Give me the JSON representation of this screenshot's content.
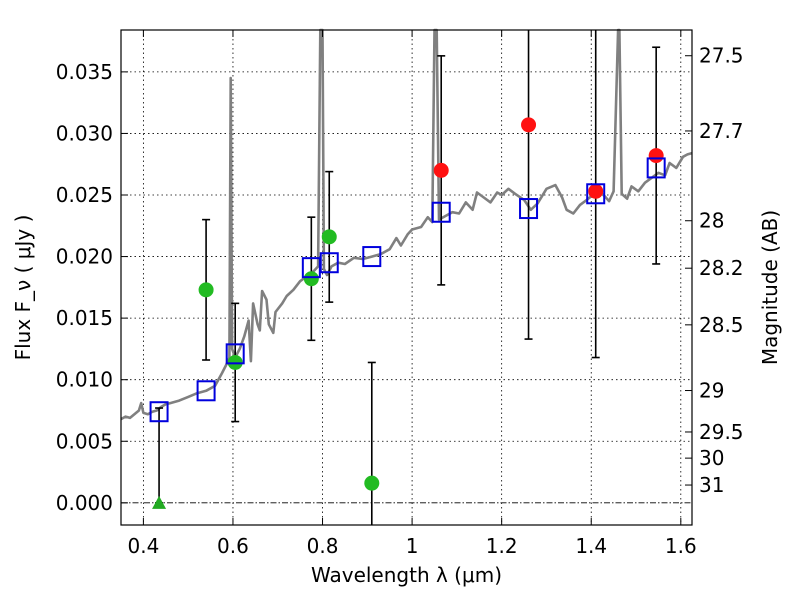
{
  "chart_data": {
    "type": "scatter",
    "xlabel": "Wavelength  λ (μm)",
    "ylabel_left": "Flux  F_ν  ( μJy )",
    "ylabel_right": "Magnitude (AB)",
    "xlim": [
      0.35,
      1.625
    ],
    "ylim": [
      -0.0018,
      0.0384
    ],
    "x_ticks": [
      0.4,
      0.6,
      0.8,
      1.0,
      1.2,
      1.4,
      1.6
    ],
    "x_tick_labels": [
      "0.4",
      "0.6",
      "0.8",
      "1",
      "1.2",
      "1.4",
      "1.6"
    ],
    "y_ticks": [
      0.0,
      0.005,
      0.01,
      0.015,
      0.02,
      0.025,
      0.03,
      0.035
    ],
    "y_tick_labels": [
      "0.000",
      "0.005",
      "0.010",
      "0.015",
      "0.020",
      "0.025",
      "0.030",
      "0.035"
    ],
    "mag_ticks": [
      {
        "label": "27.5",
        "mag": 27.5
      },
      {
        "label": "27.7",
        "mag": 27.7
      },
      {
        "label": "28",
        "mag": 28.0
      },
      {
        "label": "28.2",
        "mag": 28.2
      },
      {
        "label": "28.5",
        "mag": 28.5
      },
      {
        "label": "29",
        "mag": 29.0
      },
      {
        "label": "29.5",
        "mag": 29.5
      },
      {
        "label": "30",
        "mag": 30.0
      },
      {
        "label": "31",
        "mag": 31.0
      }
    ],
    "grid": true,
    "dashed_zero_line": true,
    "observed_green": [
      {
        "x": 0.54,
        "y": 0.0173,
        "err": 0.0057
      },
      {
        "x": 0.605,
        "y": 0.0114,
        "err": 0.0048
      },
      {
        "x": 0.775,
        "y": 0.0182,
        "err": 0.005
      },
      {
        "x": 0.815,
        "y": 0.0216,
        "err": 0.0053
      },
      {
        "x": 0.91,
        "y": 0.0016,
        "err": 0.0098
      }
    ],
    "observed_red": [
      {
        "x": 1.065,
        "y": 0.027,
        "err": 0.0093
      },
      {
        "x": 1.26,
        "y": 0.0307,
        "err": 0.0174
      },
      {
        "x": 1.41,
        "y": 0.0253,
        "err": 0.0135
      },
      {
        "x": 1.545,
        "y": 0.0282,
        "err": 0.0088
      }
    ],
    "upper_limit": {
      "x": 0.435,
      "y": 0.0,
      "err_top": 0.0077,
      "color": "#22aa22"
    },
    "model_points": [
      {
        "x": 0.435,
        "y": 0.0074
      },
      {
        "x": 0.54,
        "y": 0.0091
      },
      {
        "x": 0.605,
        "y": 0.0121
      },
      {
        "x": 0.775,
        "y": 0.0191
      },
      {
        "x": 0.815,
        "y": 0.0195
      },
      {
        "x": 0.91,
        "y": 0.02
      },
      {
        "x": 1.065,
        "y": 0.0236
      },
      {
        "x": 1.26,
        "y": 0.0239
      },
      {
        "x": 1.41,
        "y": 0.0251
      },
      {
        "x": 1.545,
        "y": 0.0272
      }
    ],
    "model_spectrum": [
      [
        0.35,
        0.0068
      ],
      [
        0.36,
        0.007
      ],
      [
        0.37,
        0.0069
      ],
      [
        0.38,
        0.0072
      ],
      [
        0.39,
        0.0075
      ],
      [
        0.395,
        0.0081
      ],
      [
        0.4,
        0.0073
      ],
      [
        0.41,
        0.0072
      ],
      [
        0.42,
        0.0074
      ],
      [
        0.43,
        0.0075
      ],
      [
        0.44,
        0.0078
      ],
      [
        0.45,
        0.008
      ],
      [
        0.46,
        0.0081
      ],
      [
        0.48,
        0.0083
      ],
      [
        0.5,
        0.0086
      ],
      [
        0.52,
        0.0089
      ],
      [
        0.54,
        0.0091
      ],
      [
        0.56,
        0.0095
      ],
      [
        0.575,
        0.0105
      ],
      [
        0.585,
        0.0112
      ],
      [
        0.592,
        0.0118
      ],
      [
        0.595,
        0.0345
      ],
      [
        0.598,
        0.0125
      ],
      [
        0.605,
        0.0118
      ],
      [
        0.615,
        0.0125
      ],
      [
        0.625,
        0.0135
      ],
      [
        0.635,
        0.0148
      ],
      [
        0.64,
        0.0115
      ],
      [
        0.645,
        0.0162
      ],
      [
        0.655,
        0.0145
      ],
      [
        0.66,
        0.014
      ],
      [
        0.665,
        0.0172
      ],
      [
        0.675,
        0.0165
      ],
      [
        0.68,
        0.0145
      ],
      [
        0.69,
        0.0138
      ],
      [
        0.695,
        0.0155
      ],
      [
        0.71,
        0.0162
      ],
      [
        0.72,
        0.0168
      ],
      [
        0.735,
        0.0173
      ],
      [
        0.75,
        0.018
      ],
      [
        0.765,
        0.0184
      ],
      [
        0.78,
        0.0188
      ],
      [
        0.79,
        0.0192
      ],
      [
        0.795,
        0.0399
      ],
      [
        0.8,
        0.0399
      ],
      [
        0.803,
        0.019
      ],
      [
        0.81,
        0.0185
      ],
      [
        0.82,
        0.0192
      ],
      [
        0.835,
        0.0195
      ],
      [
        0.85,
        0.0194
      ],
      [
        0.87,
        0.0199
      ],
      [
        0.89,
        0.0198
      ],
      [
        0.91,
        0.02
      ],
      [
        0.93,
        0.0202
      ],
      [
        0.95,
        0.0206
      ],
      [
        0.965,
        0.0215
      ],
      [
        0.975,
        0.0209
      ],
      [
        0.99,
        0.0218
      ],
      [
        1.0,
        0.0222
      ],
      [
        1.02,
        0.0224
      ],
      [
        1.035,
        0.0232
      ],
      [
        1.045,
        0.0228
      ],
      [
        1.05,
        0.0399
      ],
      [
        1.055,
        0.0399
      ],
      [
        1.06,
        0.023
      ],
      [
        1.075,
        0.0233
      ],
      [
        1.09,
        0.0236
      ],
      [
        1.105,
        0.0235
      ],
      [
        1.12,
        0.0244
      ],
      [
        1.135,
        0.0238
      ],
      [
        1.145,
        0.0252
      ],
      [
        1.16,
        0.0248
      ],
      [
        1.175,
        0.0244
      ],
      [
        1.19,
        0.0252
      ],
      [
        1.2,
        0.025
      ],
      [
        1.215,
        0.0255
      ],
      [
        1.23,
        0.0251
      ],
      [
        1.25,
        0.0246
      ],
      [
        1.265,
        0.0238
      ],
      [
        1.28,
        0.0243
      ],
      [
        1.3,
        0.0255
      ],
      [
        1.32,
        0.0258
      ],
      [
        1.335,
        0.0248
      ],
      [
        1.345,
        0.0238
      ],
      [
        1.36,
        0.0235
      ],
      [
        1.375,
        0.0242
      ],
      [
        1.39,
        0.0246
      ],
      [
        1.4,
        0.0249
      ],
      [
        1.41,
        0.0255
      ],
      [
        1.42,
        0.0252
      ],
      [
        1.43,
        0.0249
      ],
      [
        1.44,
        0.0245
      ],
      [
        1.45,
        0.0253
      ],
      [
        1.46,
        0.0399
      ],
      [
        1.463,
        0.0399
      ],
      [
        1.468,
        0.0251
      ],
      [
        1.48,
        0.0247
      ],
      [
        1.49,
        0.0257
      ],
      [
        1.505,
        0.0253
      ],
      [
        1.52,
        0.026
      ],
      [
        1.535,
        0.0264
      ],
      [
        1.55,
        0.0268
      ],
      [
        1.565,
        0.0266
      ],
      [
        1.575,
        0.0276
      ],
      [
        1.59,
        0.0272
      ],
      [
        1.605,
        0.0281
      ],
      [
        1.615,
        0.0283
      ],
      [
        1.625,
        0.0284
      ]
    ],
    "colors": {
      "green": "#22bb22",
      "red": "#ff1111",
      "model_box": "#0000dd",
      "spectrum": "#808080",
      "errorbar": "#000000"
    }
  }
}
